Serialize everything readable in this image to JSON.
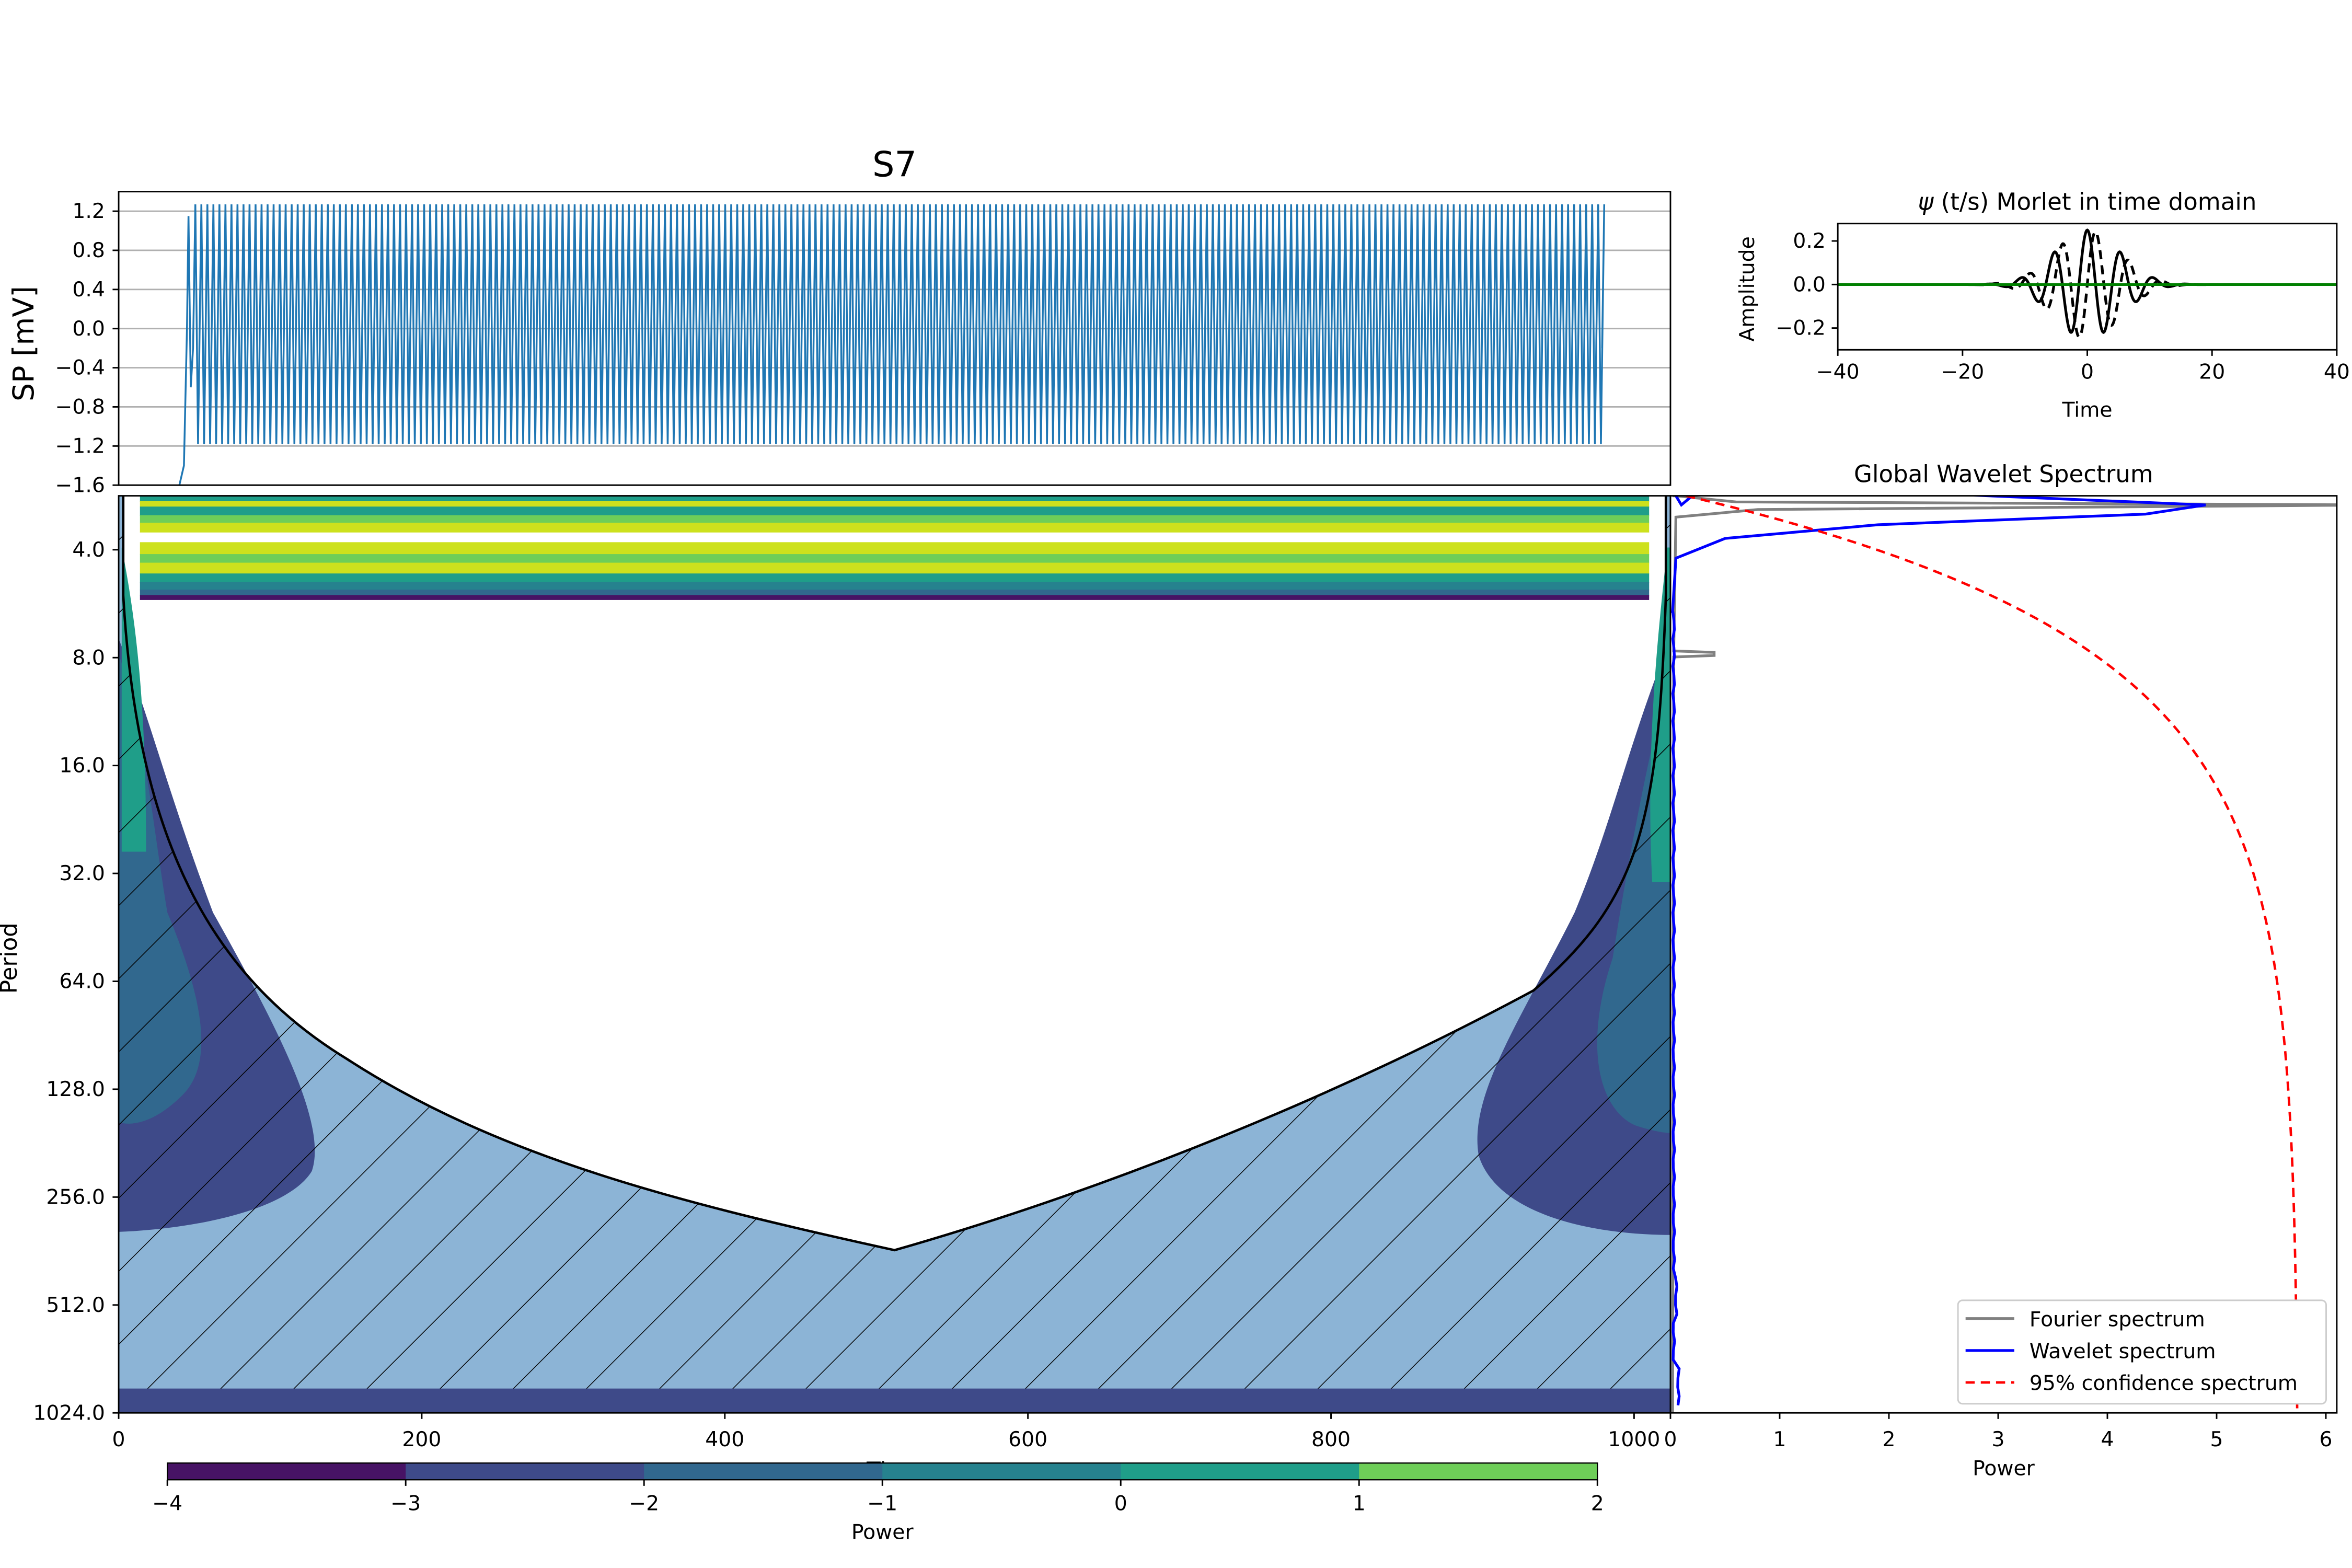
{
  "chart_data": [
    {
      "type": "line",
      "title": "S7",
      "ylabel": "SP [mV]",
      "ylim": [
        -1.6,
        1.4
      ],
      "yticks": [
        "1.2",
        "0.8",
        "0.4",
        "0.0",
        "−0.4",
        "−0.8",
        "−1.2",
        "−1.6"
      ],
      "grid": "horizontal",
      "series": [
        {
          "color": "#1f77b4",
          "x_start": 0.045,
          "x_end": 0.955,
          "max": 1.27,
          "min": -1.18,
          "oscillation_period_fraction": 0.00388
        }
      ]
    },
    {
      "type": "line",
      "title": "ψ (t/s) Morlet in time domain",
      "title_greek": "ψ",
      "title_rest": " (t/s) Morlet in time domain",
      "xlabel": "Time",
      "ylabel": "Amplitude",
      "xlim": [
        -40,
        40
      ],
      "ylim": [
        -0.3,
        0.28
      ],
      "xticks": [
        "−40",
        "−20",
        "0",
        "20",
        "40"
      ],
      "yticks": [
        "0.2",
        "0.0",
        "−0.2"
      ],
      "series": [
        {
          "style": "real",
          "color": "#000000",
          "dash": "solid",
          "amplitude": 0.25,
          "omega": 1.18,
          "sigma": 5.2
        },
        {
          "style": "imaginary",
          "color": "#000000",
          "dash": "dashed",
          "amplitude": 0.25,
          "omega": 1.18,
          "sigma": 5.2
        },
        {
          "style": "zero",
          "color": "#008000",
          "dash": "solid"
        }
      ]
    },
    {
      "type": "heatmap",
      "xlabel": "Time",
      "ylabel": "Period",
      "xlim": [
        0,
        1024
      ],
      "ylim_log2": [
        1.5,
        10
      ],
      "xticks": [
        "0",
        "200",
        "400",
        "600",
        "800",
        "1000"
      ],
      "yticks": [
        "4.0",
        "8.0",
        "16.0",
        "32.0",
        "64.0",
        "128.0",
        "256.0",
        "512.0",
        "1024.0"
      ],
      "colorbar": {
        "label": "Power",
        "ticks": [
          "−4",
          "−3",
          "−2",
          "−1",
          "0",
          "1",
          "2"
        ],
        "colors": [
          "#471365",
          "#3e4a89",
          "#31688e",
          "#26828e",
          "#1f9e89",
          "#6ece58",
          "#cde11d"
        ]
      },
      "cone_of_influence_color": "#8cb4d6"
    },
    {
      "type": "line",
      "title": "Global Wavelet Spectrum",
      "xlabel": "Power",
      "xlim": [
        0,
        6.1
      ],
      "xticks": [
        "0",
        "1",
        "2",
        "3",
        "4",
        "5",
        "6"
      ],
      "legend_position": "lower-right",
      "series": [
        {
          "name": "Fourier spectrum",
          "color": "#808080",
          "dash": "solid"
        },
        {
          "name": "Wavelet spectrum",
          "color": "#0000ff",
          "dash": "solid",
          "peak_power": 4.9,
          "peak_period": 3.0
        },
        {
          "name": "95% confidence spectrum",
          "color": "#ff0000",
          "dash": "dashed"
        }
      ]
    }
  ]
}
